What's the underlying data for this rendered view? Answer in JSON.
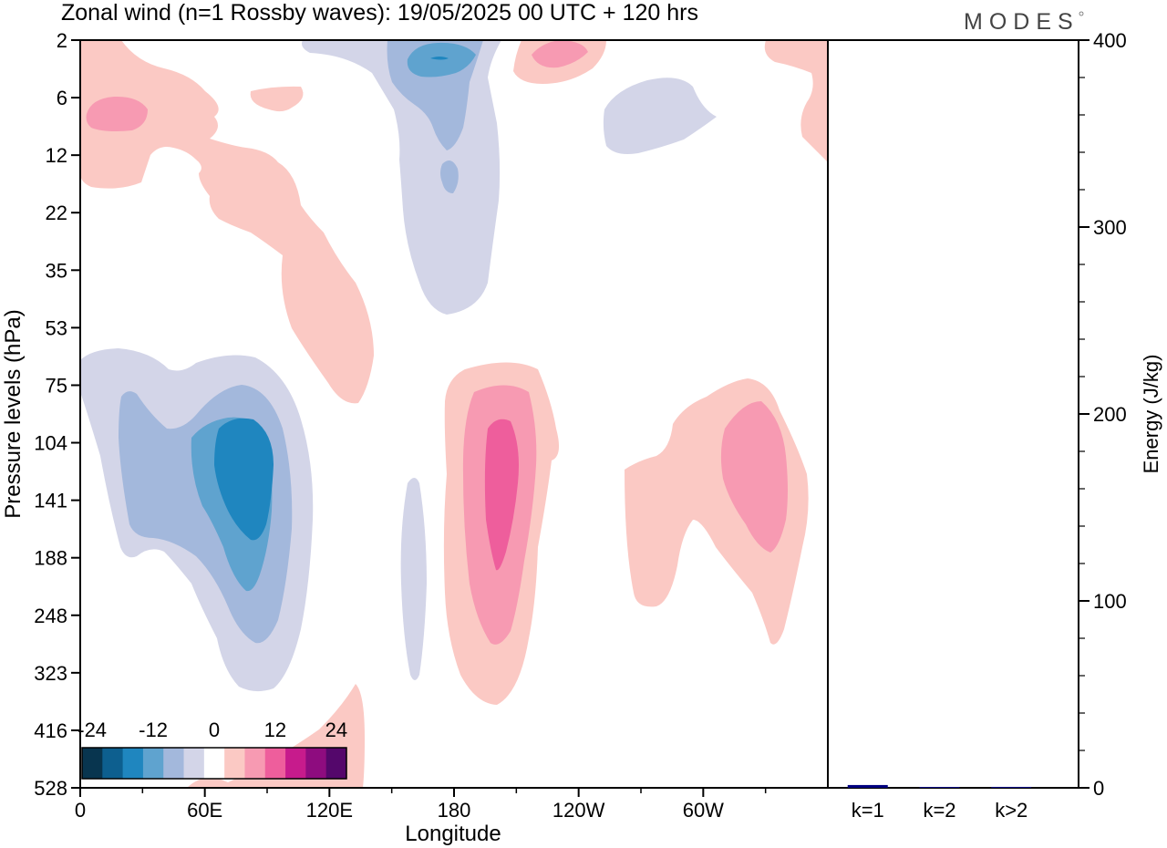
{
  "title": "Zonal wind (n=1 Rossby waves):  19/05/2025  00 UTC  + 120 hrs",
  "logo": "MODES",
  "chart_data": [
    {
      "type": "heatmap",
      "subtype": "filled-contour",
      "ylabel": "Pressure levels (hPa)",
      "xlabel": "Longitude",
      "yticks": [
        "2",
        "6",
        "12",
        "22",
        "35",
        "53",
        "75",
        "104",
        "141",
        "188",
        "248",
        "323",
        "416",
        "528"
      ],
      "xticks": [
        "0",
        "60E",
        "120E",
        "180",
        "120W",
        "60W"
      ],
      "xtick_degrees": [
        0,
        60,
        120,
        180,
        240,
        300
      ],
      "xlim": [
        0,
        360
      ],
      "colorbar": {
        "labels": [
          "-24",
          "-12",
          "0",
          "12",
          "24"
        ],
        "levels": [
          -30,
          -25,
          -20,
          -15,
          -10,
          -5,
          0,
          5,
          10,
          15,
          20,
          25,
          30
        ],
        "colors": [
          "#08354f",
          "#0d5f8f",
          "#1f86bf",
          "#5fa3cf",
          "#a3b8dc",
          "#d3d5e8",
          "#ffffff",
          "#fbc9c4",
          "#f79ab2",
          "#ee5e9c",
          "#c71b8c",
          "#8e0c7f",
          "#54076b"
        ]
      },
      "features": [
        {
          "sign": "negative",
          "peak_value": -18,
          "lon": 80,
          "level_hPa": 141
        },
        {
          "sign": "negative",
          "peak_value": -12,
          "lon": 172,
          "level_hPa": 3
        },
        {
          "sign": "negative",
          "peak_value": -4,
          "lon": 160,
          "level_hPa": 188
        },
        {
          "sign": "negative",
          "peak_value": -4,
          "lon": 290,
          "level_hPa": 8
        },
        {
          "sign": "positive",
          "peak_value": 14,
          "lon": 200,
          "level_hPa": 141
        },
        {
          "sign": "positive",
          "peak_value": 10,
          "lon": 327,
          "level_hPa": 120
        },
        {
          "sign": "positive",
          "peak_value": 8,
          "lon": 22,
          "level_hPa": 8
        },
        {
          "sign": "positive",
          "peak_value": 8,
          "lon": 225,
          "level_hPa": 3
        }
      ]
    },
    {
      "type": "bar",
      "ylabel": "Energy (J/kg)",
      "categories": [
        "k=1",
        "k=2",
        "k>2"
      ],
      "values": [
        1.5,
        0.2,
        0.5
      ],
      "ylim": [
        0,
        400
      ],
      "yticks": [
        "0",
        "100",
        "200",
        "300",
        "400"
      ],
      "bar_color": "#000080"
    }
  ]
}
